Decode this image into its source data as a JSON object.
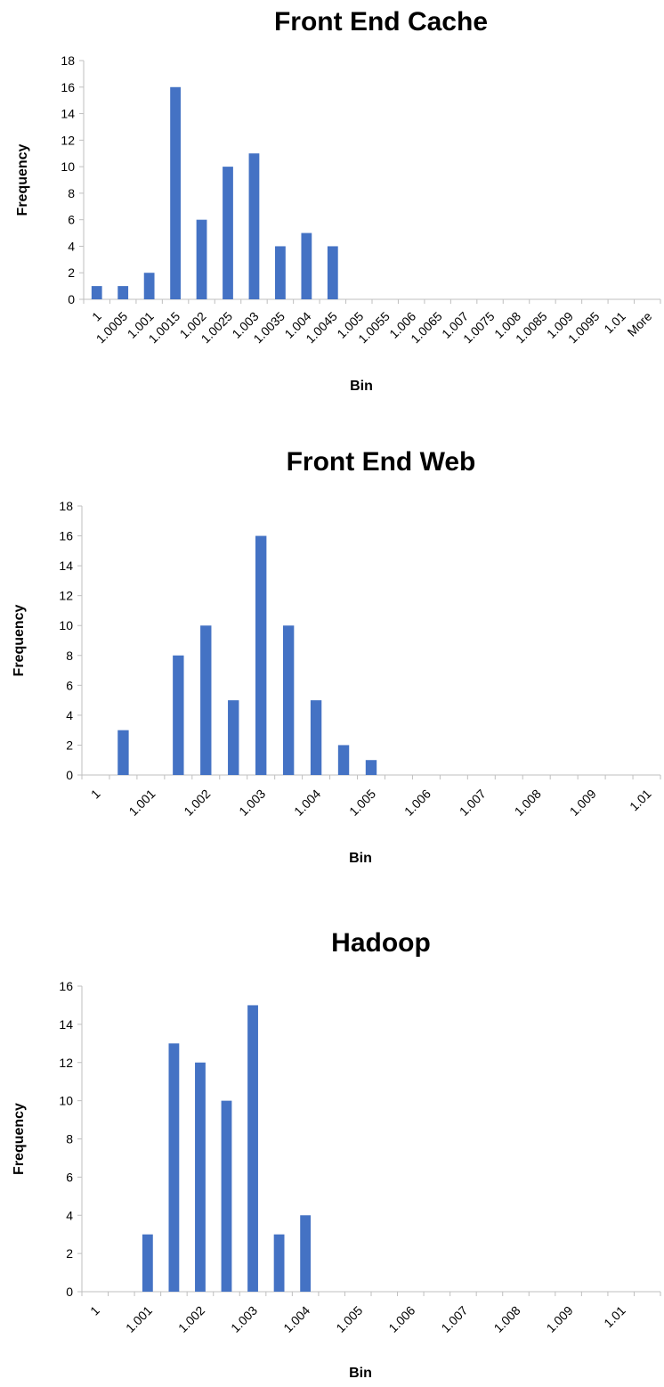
{
  "chart_data": [
    {
      "type": "bar",
      "title": "Front End Cache",
      "xlabel": "Bin",
      "ylabel": "Frequency",
      "ylim": [
        0,
        18
      ],
      "yticks": [
        "0",
        "2",
        "4",
        "6",
        "8",
        "10",
        "12",
        "14",
        "16",
        "18"
      ],
      "categories": [
        "1",
        "1.0005",
        "1.001",
        "1.0015",
        "1.002",
        "1.0025",
        "1.003",
        "1.0035",
        "1.004",
        "1.0045",
        "1.005",
        "1.0055",
        "1.006",
        "1.0065",
        "1.007",
        "1.0075",
        "1.008",
        "1.0085",
        "1.009",
        "1.0095",
        "1.01",
        "More"
      ],
      "values": [
        1,
        1,
        2,
        16,
        6,
        10,
        11,
        4,
        5,
        4,
        0,
        0,
        0,
        0,
        0,
        0,
        0,
        0,
        0,
        0,
        0,
        0
      ],
      "bar_color": "#4472C4",
      "grid": false,
      "legend": "none"
    },
    {
      "type": "bar",
      "title": "Front End Web",
      "xlabel": "Bin",
      "ylabel": "Frequency",
      "ylim": [
        0,
        18
      ],
      "yticks": [
        "0",
        "2",
        "4",
        "6",
        "8",
        "10",
        "12",
        "14",
        "16",
        "18"
      ],
      "categories": [
        "1",
        "1.0005",
        "1.001",
        "1.0015",
        "1.002",
        "1.0025",
        "1.003",
        "1.0035",
        "1.004",
        "1.0045",
        "1.005",
        "1.0055",
        "1.006",
        "1.0065",
        "1.007",
        "1.0075",
        "1.008",
        "1.0085",
        "1.009",
        "1.0095",
        "1.01"
      ],
      "category_labels": [
        "1",
        "",
        "1.001",
        "",
        "1.002",
        "",
        "1.003",
        "",
        "1.004",
        "",
        "1.005",
        "",
        "1.006",
        "",
        "1.007",
        "",
        "1.008",
        "",
        "1.009",
        "",
        "1.01"
      ],
      "values": [
        0,
        3,
        0,
        8,
        10,
        5,
        16,
        10,
        5,
        2,
        1,
        0,
        0,
        0,
        0,
        0,
        0,
        0,
        0,
        0,
        0
      ],
      "bar_color": "#4472C4",
      "grid": false,
      "legend": "none"
    },
    {
      "type": "bar",
      "title": "Hadoop",
      "xlabel": "Bin",
      "ylabel": "Frequency",
      "ylim": [
        0,
        16
      ],
      "yticks": [
        "0",
        "2",
        "4",
        "6",
        "8",
        "10",
        "12",
        "14",
        "16"
      ],
      "categories": [
        "1",
        "1.0005",
        "1.001",
        "1.0015",
        "1.002",
        "1.0025",
        "1.003",
        "1.0035",
        "1.004",
        "1.0045",
        "1.005",
        "1.0055",
        "1.006",
        "1.0065",
        "1.007",
        "1.0075",
        "1.008",
        "1.0085",
        "1.009",
        "1.0095",
        "1.01",
        "1.0105"
      ],
      "category_labels": [
        "1",
        "",
        "1.001",
        "",
        "1.002",
        "",
        "1.003",
        "",
        "1.004",
        "",
        "1.005",
        "",
        "1.006",
        "",
        "1.007",
        "",
        "1.008",
        "",
        "1.009",
        "",
        "1.01",
        ""
      ],
      "values": [
        0,
        0,
        3,
        13,
        12,
        10,
        15,
        3,
        4,
        0,
        0,
        0,
        0,
        0,
        0,
        0,
        0,
        0,
        0,
        0,
        0,
        0
      ],
      "bar_color": "#4472C4",
      "grid": false,
      "legend": "none"
    }
  ]
}
